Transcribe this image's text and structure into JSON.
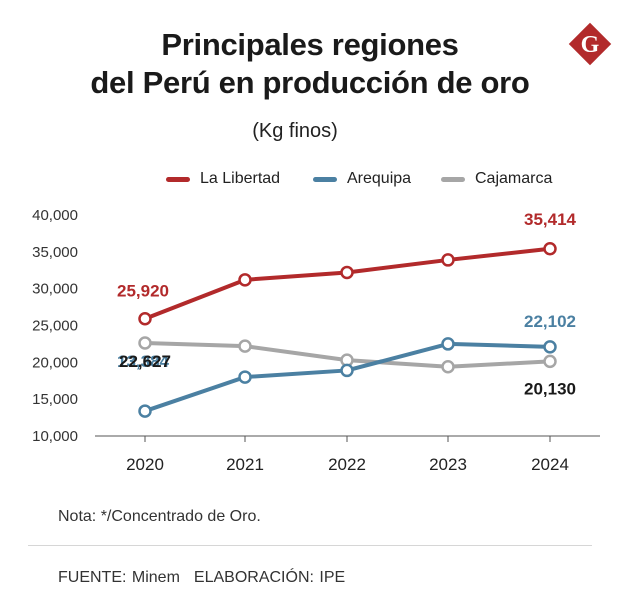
{
  "chart_data": {
    "type": "line",
    "title_lines": [
      "Principales regiones",
      "del Perú en producción de oro"
    ],
    "subtitle": "(Kg finos)",
    "x": [
      "2020",
      "2021",
      "2022",
      "2023",
      "2024"
    ],
    "ylim": [
      10000,
      40000
    ],
    "yticks": [
      10000,
      15000,
      20000,
      25000,
      30000,
      35000,
      40000
    ],
    "ytick_labels": [
      "10,000",
      "15,000",
      "20,000",
      "25,000",
      "30,000",
      "35,000",
      "40,000"
    ],
    "grid": false,
    "legend_position": "top",
    "series": [
      {
        "name": "La Libertad",
        "color": "#b22a2b",
        "values": [
          25920,
          31200,
          32200,
          33900,
          35414
        ],
        "labels": [
          {
            "index": 0,
            "text": "25,920",
            "color": "#b22a2b"
          },
          {
            "index": 4,
            "text": "35,414",
            "color": "#b22a2b"
          }
        ]
      },
      {
        "name": "Arequipa",
        "color": "#4b80a2",
        "values": [
          13384,
          18000,
          18900,
          22500,
          22102
        ],
        "labels": [
          {
            "index": 0,
            "text": "13,384",
            "color": "#4b80a2"
          },
          {
            "index": 4,
            "text": "22,102",
            "color": "#4b80a2"
          }
        ]
      },
      {
        "name": "Cajamarca",
        "color": "#a6a6a6",
        "values": [
          22627,
          22200,
          20300,
          19400,
          20130
        ],
        "labels": [
          {
            "index": 0,
            "text": "22,627",
            "color": "#1a1a1a"
          },
          {
            "index": 4,
            "text": "20,130",
            "color": "#1a1a1a"
          }
        ]
      }
    ]
  },
  "note": "Nota: */Concentrado de Oro.",
  "source": {
    "fuente": "FUENTE: Minem",
    "elaboracion": "ELABORACIÓN: IPE"
  },
  "logo": {
    "letter": "G",
    "color": "#b22a2b"
  }
}
